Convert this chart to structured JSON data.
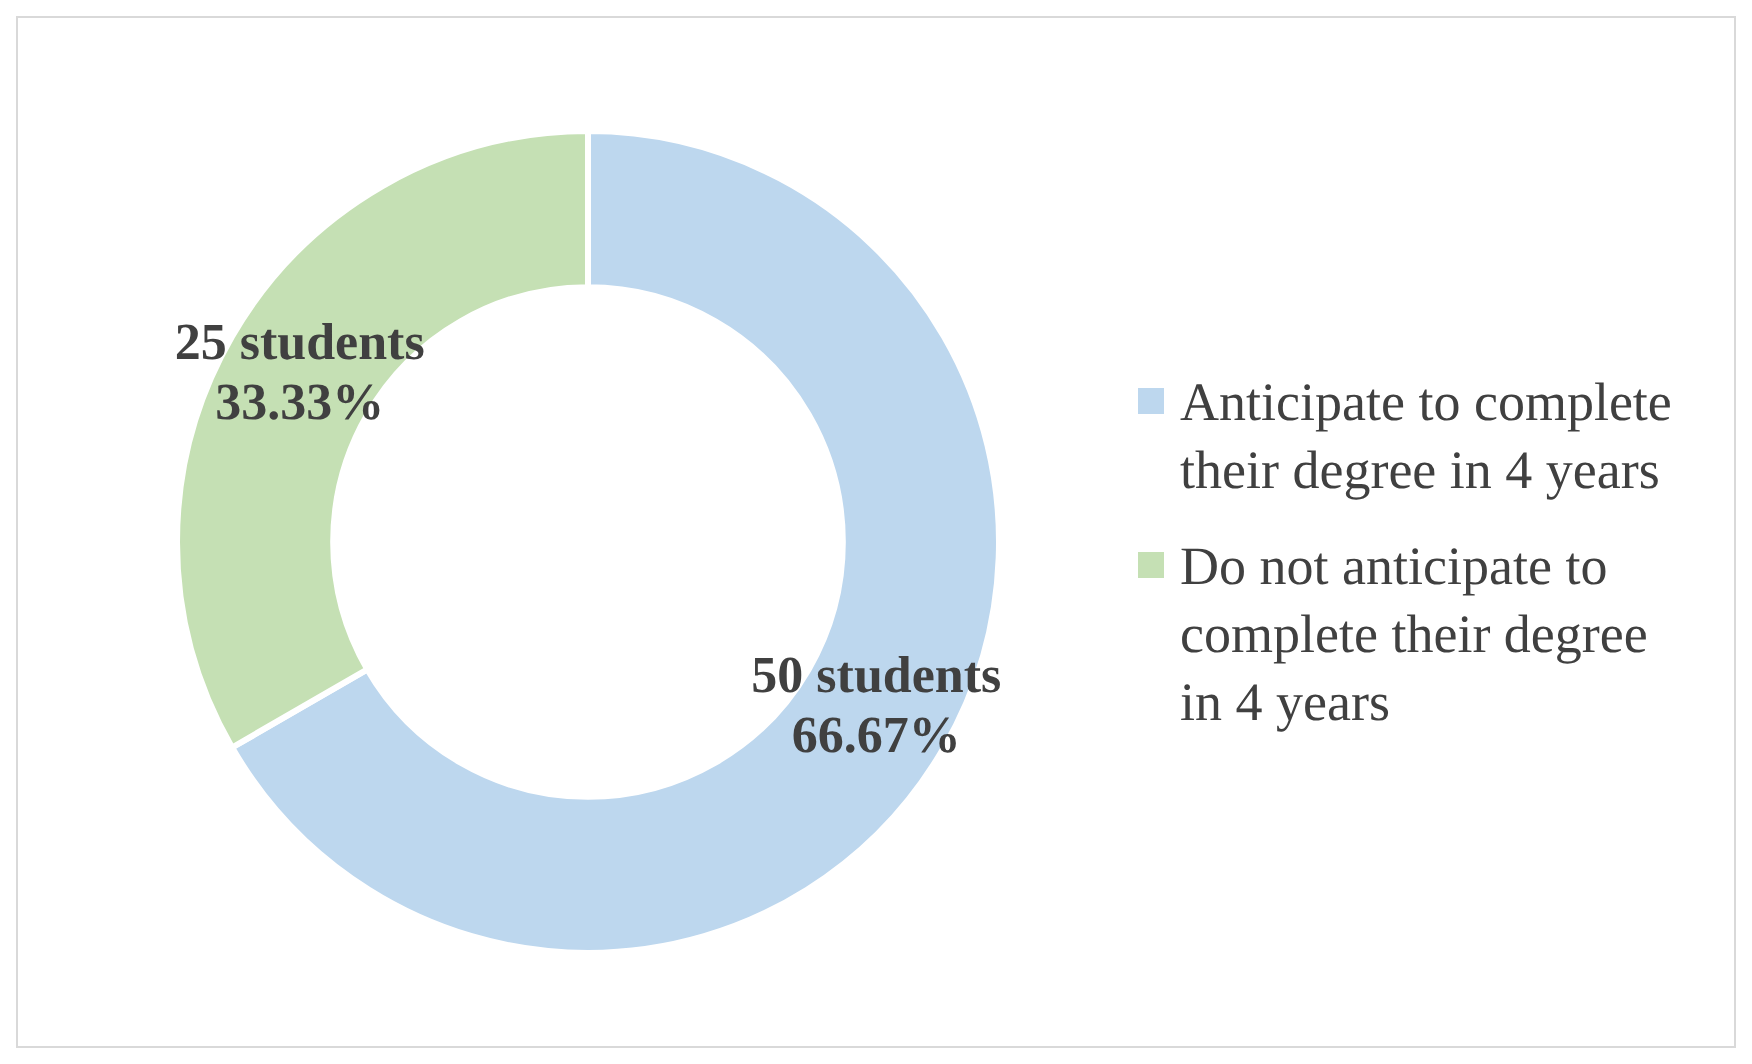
{
  "chart_data": {
    "type": "donut",
    "categories": [
      "Anticipate to complete their degree in 4 years",
      "Do not anticipate to complete their degree in 4 years"
    ],
    "values": [
      50,
      25
    ],
    "colors": [
      "#bdd7ee",
      "#c5e0b4"
    ],
    "value_labels": [
      "50 students\n66.67%",
      "25 students\n33.33%"
    ],
    "legend": "right"
  }
}
